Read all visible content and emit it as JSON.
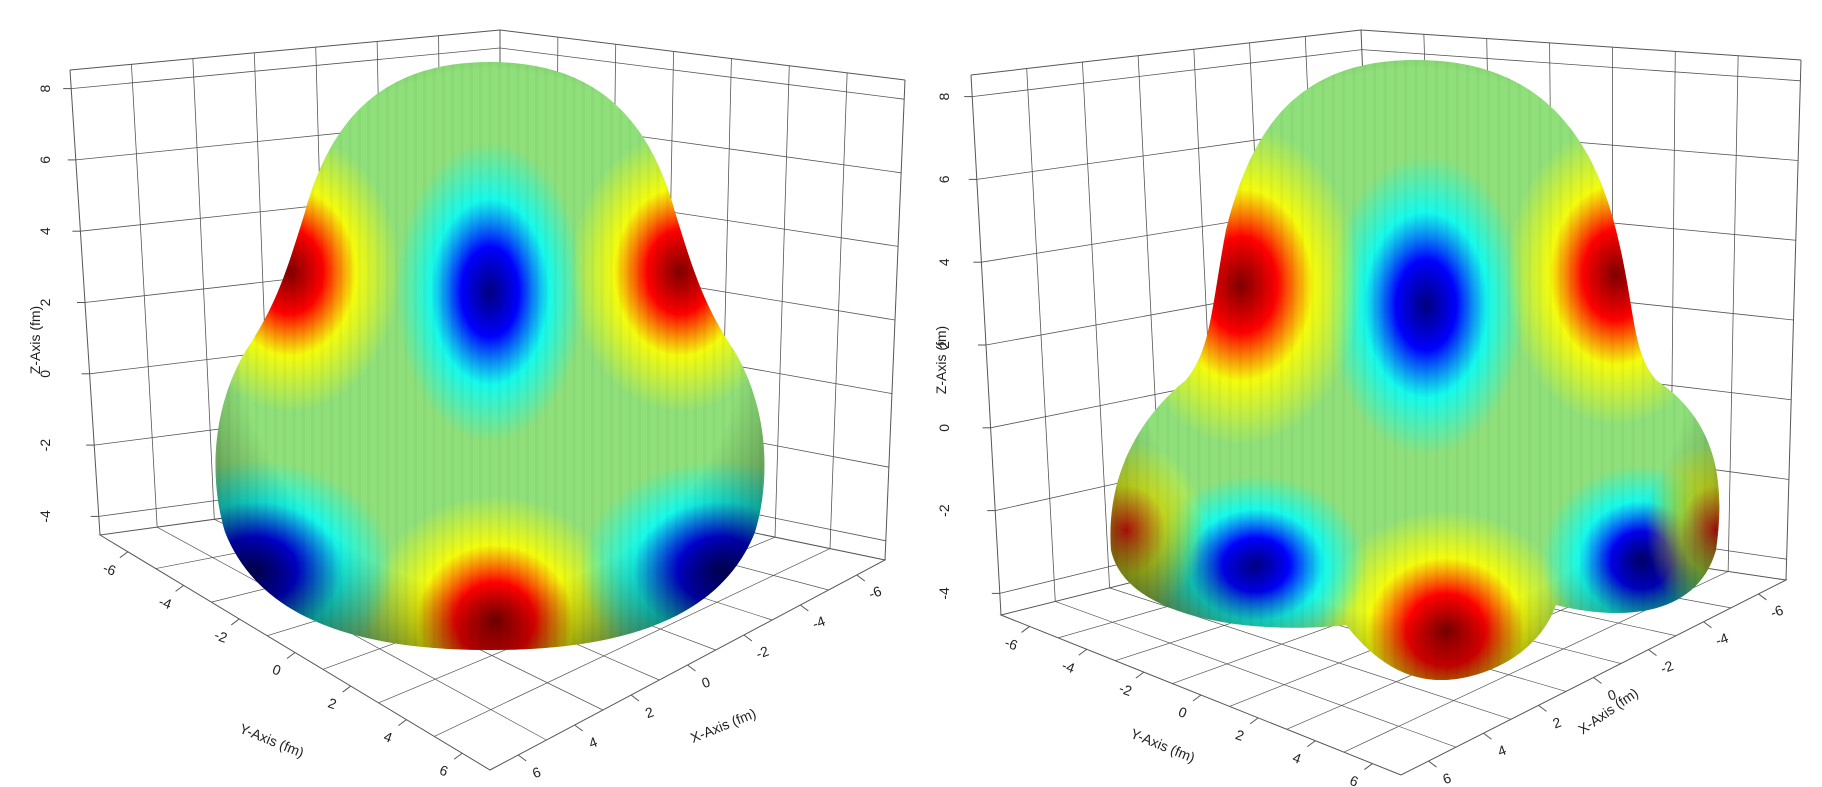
{
  "chart_data": [
    {
      "type": "surface3d",
      "title": "",
      "xlabel": "X-Axis (fm)",
      "ylabel": "Y-Axis (fm)",
      "zlabel": "Z-Axis (fm)",
      "x_ticks": [
        "-6",
        "-4",
        "-2",
        "0",
        "2",
        "4",
        "6"
      ],
      "y_ticks": [
        "-6",
        "-4",
        "-2",
        "0",
        "2",
        "4",
        "6"
      ],
      "z_ticks": [
        "-4",
        "-2",
        "0",
        "2",
        "4",
        "6",
        "8"
      ],
      "xlim": [
        -7,
        7
      ],
      "ylim": [
        -7,
        7
      ],
      "zlim": [
        -5,
        8.5
      ],
      "grid": true,
      "colormap": [
        "#00007f",
        "#0000ff",
        "#00ffff",
        "#80ff80",
        "#ffff00",
        "#ff0000",
        "#7f0000"
      ],
      "shape": "pear-shaped nucleus surface (octupole deformed)"
    },
    {
      "type": "surface3d",
      "title": "",
      "xlabel": "X-Axis (fm)",
      "ylabel": "Y-Axis (fm)",
      "zlabel": "Z-Axis (fm)",
      "x_ticks": [
        "-6",
        "-4",
        "-2",
        "0",
        "2",
        "4",
        "6"
      ],
      "y_ticks": [
        "-6",
        "-4",
        "-2",
        "0",
        "2",
        "4",
        "6"
      ],
      "z_ticks": [
        "-4",
        "-2",
        "0",
        "2",
        "4",
        "6",
        "8"
      ],
      "xlim": [
        -7,
        7
      ],
      "ylim": [
        -7,
        7
      ],
      "zlim": [
        -5,
        8.5
      ],
      "grid": true,
      "colormap": [
        "#00007f",
        "#0000ff",
        "#00ffff",
        "#80ff80",
        "#ffff00",
        "#ff0000",
        "#7f0000"
      ],
      "shape": "tetrahedral-like nucleus surface with three lower lobes"
    }
  ]
}
